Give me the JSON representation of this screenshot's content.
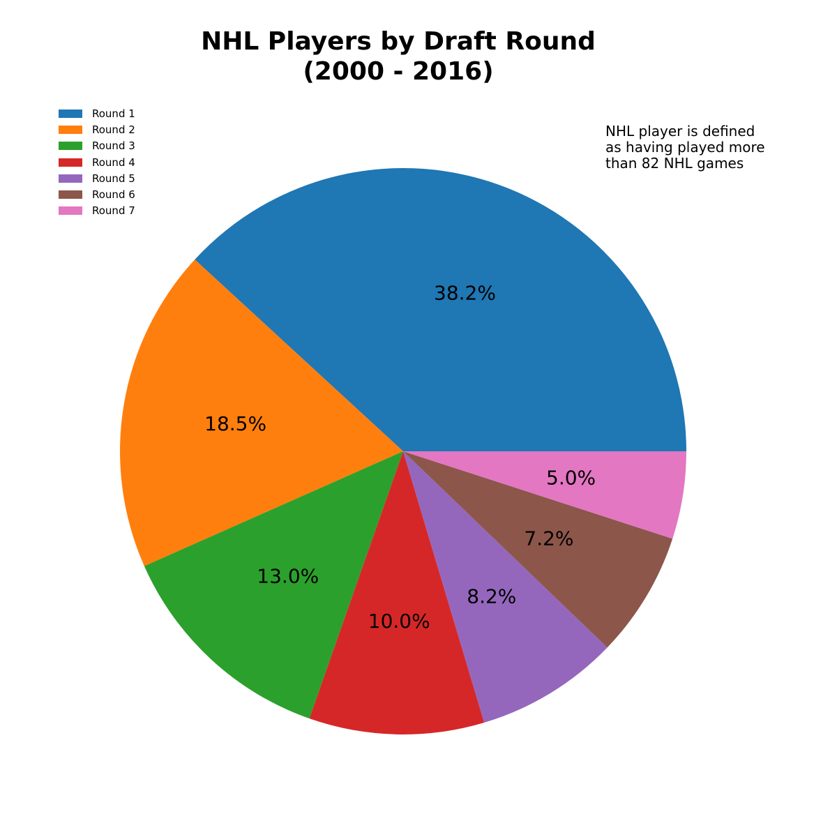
{
  "chart_data": {
    "type": "pie",
    "title_lines": [
      "NHL Players by Draft Round",
      "(2000 - 2016)"
    ],
    "categories": [
      "Round 1",
      "Round 2",
      "Round 3",
      "Round 4",
      "Round 5",
      "Round 6",
      "Round 7"
    ],
    "values": [
      38.2,
      18.5,
      13.0,
      10.0,
      8.2,
      7.2,
      5.0
    ],
    "value_labels": [
      "38.2%",
      "18.5%",
      "13.0%",
      "10.0%",
      "8.2%",
      "7.2%",
      "5.0%"
    ],
    "colors": [
      "#1f77b4",
      "#ff7f0e",
      "#2ca02c",
      "#d62728",
      "#9467bd",
      "#8c564b",
      "#e377c2"
    ],
    "start_angle_deg": 0,
    "direction": "counterclockwise",
    "legend_position": "upper-left",
    "annotation_lines": [
      "NHL player is defined",
      "as having played more",
      "than 82 NHL games"
    ]
  }
}
